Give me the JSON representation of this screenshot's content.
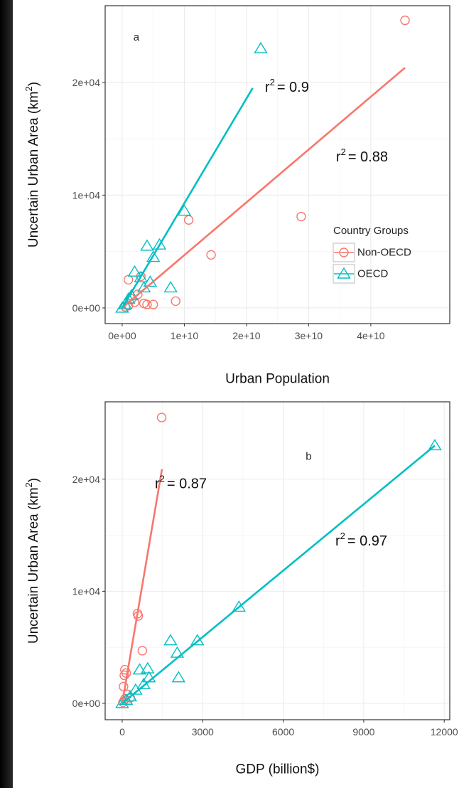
{
  "chart_data": [
    {
      "type": "scatter",
      "panel_label": {
        "text": "a",
        "x": 1800000000,
        "y": 24480
      },
      "xlabel": "Urban Population",
      "ylabel": {
        "text": "Uncertain Urban Area (km",
        "sup": "2",
        "end": ")"
      },
      "xlim": [
        -2740000000,
        52700000000
      ],
      "ylim": [
        -1390,
        26800
      ],
      "xticks": [
        {
          "value": 0,
          "label": "0e+00"
        },
        {
          "value": 10000000000,
          "label": "1e+10"
        },
        {
          "value": 20000000000,
          "label": "2e+10"
        },
        {
          "value": 30000000000,
          "label": "3e+10"
        },
        {
          "value": 40000000000,
          "label": "4e+10"
        }
      ],
      "yticks": [
        {
          "value": 0,
          "label": "0e+00"
        },
        {
          "value": 10000,
          "label": "1e+04"
        },
        {
          "value": 20000,
          "label": "2e+04"
        }
      ],
      "grid": true,
      "legend": {
        "title": "Country Groups",
        "position": "bottom-right"
      },
      "series": [
        {
          "name": "Non-OECD",
          "color": "#F8766D",
          "shape": "circle",
          "x": [
            45500000000,
            28800000000,
            10700000000,
            14300000000,
            8600000000,
            1000000000,
            3000000000,
            4000000000,
            5000000000,
            2000000000,
            1000000000,
            500000000,
            2500000000,
            1500000000,
            3500000000
          ],
          "y": [
            25500,
            8100,
            7800,
            4700,
            600,
            2500,
            2800,
            300,
            300,
            500,
            200,
            100,
            1200,
            800,
            400
          ],
          "fit_x": [
            0,
            45500000000
          ],
          "fit_y": [
            0,
            21300
          ]
        },
        {
          "name": "OECD",
          "color": "#00BFC4",
          "shape": "triangle",
          "x": [
            22300000000,
            10000000000,
            6000000000,
            4000000000,
            7800000000,
            5000000000,
            2000000000,
            3000000000,
            4500000000,
            3500000000,
            1500000000,
            1000000000,
            500000000,
            0
          ],
          "y": [
            23000,
            8600,
            5600,
            5500,
            1800,
            4500,
            3200,
            2700,
            2300,
            1800,
            1100,
            800,
            300,
            0
          ],
          "fit_x": [
            0,
            21000000000
          ],
          "fit_y": [
            0,
            19500
          ]
        }
      ],
      "annotations": [
        {
          "text": "r",
          "sup": "2",
          "rest": "= 0.9",
          "x": 22970000000,
          "y": 19620
        },
        {
          "text": "r",
          "sup": "2",
          "rest": "= 0.88",
          "x": 34400000000,
          "y": 13440
        }
      ]
    },
    {
      "type": "scatter",
      "panel_label": {
        "text": "b",
        "x": 6838,
        "y": 22480
      },
      "xlabel": "GDP (billion$)",
      "ylabel": {
        "text": "Uncertain Urban Area (km",
        "sup": "2",
        "end": ")"
      },
      "xlim": [
        -635,
        12206
      ],
      "ylim": [
        -1460,
        26900
      ],
      "xticks": [
        0,
        3000,
        6000,
        9000,
        12000
      ],
      "yticks": [
        {
          "value": 0,
          "label": "0e+00"
        },
        {
          "value": 10000,
          "label": "1e+04"
        },
        {
          "value": 20000,
          "label": "2e+04"
        }
      ],
      "grid": true,
      "series": [
        {
          "name": "Non-OECD",
          "color": "#F8766D",
          "shape": "circle",
          "x": [
            1470,
            570,
            600,
            750,
            100,
            80,
            150,
            50,
            200,
            100,
            30,
            300
          ],
          "y": [
            25500,
            8000,
            7800,
            4700,
            3000,
            2500,
            2700,
            1500,
            800,
            400,
            100,
            500
          ],
          "fit_x": [
            0,
            1483
          ],
          "fit_y": [
            0,
            20900
          ]
        },
        {
          "name": "OECD",
          "color": "#00BFC4",
          "shape": "triangle",
          "x": [
            11650,
            4350,
            1800,
            2800,
            2050,
            2100,
            950,
            650,
            1000,
            800,
            500,
            300,
            150,
            0
          ],
          "y": [
            23000,
            8600,
            5600,
            5600,
            4500,
            2300,
            3100,
            3000,
            2300,
            1700,
            1200,
            600,
            300,
            0
          ],
          "fit_x": [
            0,
            11650
          ],
          "fit_y": [
            0,
            23000
          ]
        }
      ],
      "annotations": [
        {
          "text": "r",
          "sup": "2",
          "rest": "= 0.87",
          "x": 1218,
          "y": 19620
        },
        {
          "text": "r",
          "sup": "2",
          "rest": "= 0.97",
          "x": 7943,
          "y": 14540
        }
      ]
    }
  ]
}
